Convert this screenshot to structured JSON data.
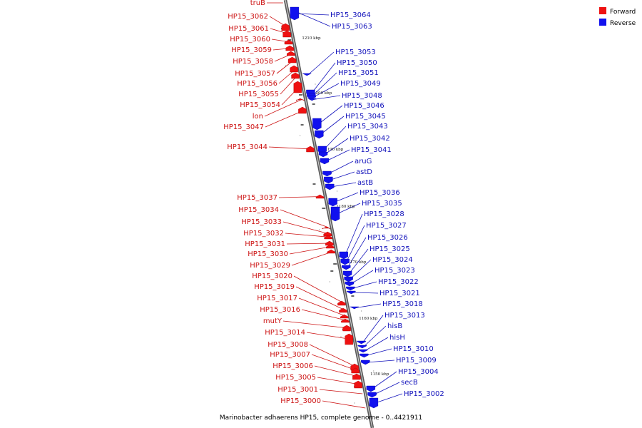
{
  "caption": "Marinobacter adhaerens HP15, complete genome - 0..4421911",
  "legend": [
    {
      "label": "Forward",
      "color": "#ee1111"
    },
    {
      "label": "Reverse",
      "color": "#1111ee"
    }
  ],
  "colors": {
    "forward": "#ee1111",
    "reverse": "#1111ee",
    "forward_label": "#cc1111",
    "reverse_label": "#1111bb",
    "backbone": "#7a7a7a"
  },
  "ticks": [
    {
      "kbp": 1210,
      "label": "1210 kbp"
    },
    {
      "kbp": 1200,
      "label": "1200 kbp"
    },
    {
      "kbp": 1190,
      "label": "1190 kbp"
    },
    {
      "kbp": 1180,
      "label": "1180 kbp"
    },
    {
      "kbp": 1170,
      "label": "1170 kbp"
    },
    {
      "kbp": 1160,
      "label": "1160 kbp"
    },
    {
      "kbp": 1150,
      "label": "1150 kbp"
    }
  ],
  "forward_genes": [
    {
      "label": "truB"
    },
    {
      "label": "HP15_3062"
    },
    {
      "label": "HP15_3061"
    },
    {
      "label": "HP15_3060"
    },
    {
      "label": "HP15_3059"
    },
    {
      "label": "HP15_3058"
    },
    {
      "label": "HP15_3057"
    },
    {
      "label": "HP15_3056"
    },
    {
      "label": "HP15_3055"
    },
    {
      "label": "HP15_3054"
    },
    {
      "label": "lon"
    },
    {
      "label": "HP15_3047"
    },
    {
      "label": "HP15_3044"
    },
    {
      "label": "HP15_3037"
    },
    {
      "label": "HP15_3034"
    },
    {
      "label": "HP15_3033"
    },
    {
      "label": "HP15_3032"
    },
    {
      "label": "HP15_3031"
    },
    {
      "label": "HP15_3030"
    },
    {
      "label": "HP15_3029"
    },
    {
      "label": "HP15_3020"
    },
    {
      "label": "HP15_3019"
    },
    {
      "label": "HP15_3017"
    },
    {
      "label": "HP15_3016"
    },
    {
      "label": "mutY"
    },
    {
      "label": "HP15_3014"
    },
    {
      "label": "HP15_3008"
    },
    {
      "label": "HP15_3007"
    },
    {
      "label": "HP15_3006"
    },
    {
      "label": "HP15_3005"
    },
    {
      "label": "HP15_3001"
    },
    {
      "label": "HP15_3000"
    }
  ],
  "reverse_genes": [
    {
      "label": "HP15_3064"
    },
    {
      "label": "HP15_3063"
    },
    {
      "label": "HP15_3053"
    },
    {
      "label": "HP15_3050"
    },
    {
      "label": "HP15_3051"
    },
    {
      "label": "HP15_3049"
    },
    {
      "label": "HP15_3048"
    },
    {
      "label": "HP15_3046"
    },
    {
      "label": "HP15_3045"
    },
    {
      "label": "HP15_3043"
    },
    {
      "label": "HP15_3042"
    },
    {
      "label": "HP15_3041"
    },
    {
      "label": "aruG"
    },
    {
      "label": "astD"
    },
    {
      "label": "astB"
    },
    {
      "label": "HP15_3036"
    },
    {
      "label": "HP15_3035"
    },
    {
      "label": "HP15_3028"
    },
    {
      "label": "HP15_3027"
    },
    {
      "label": "HP15_3026"
    },
    {
      "label": "HP15_3025"
    },
    {
      "label": "HP15_3024"
    },
    {
      "label": "HP15_3023"
    },
    {
      "label": "HP15_3022"
    },
    {
      "label": "HP15_3021"
    },
    {
      "label": "HP15_3018"
    },
    {
      "label": "HP15_3013"
    },
    {
      "label": "hisB"
    },
    {
      "label": "hisH"
    },
    {
      "label": "HP15_3010"
    },
    {
      "label": "HP15_3009"
    },
    {
      "label": "HP15_3004"
    },
    {
      "label": "secB"
    },
    {
      "label": "HP15_3002"
    }
  ]
}
